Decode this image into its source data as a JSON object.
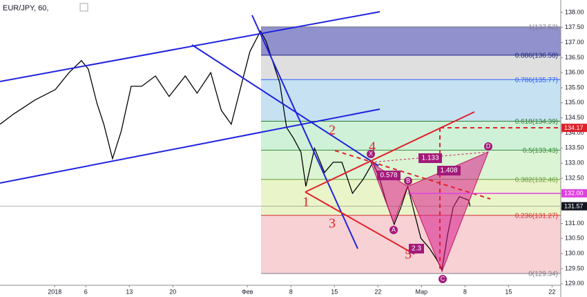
{
  "chart_data": {
    "type": "line",
    "title": "EUR/JPY, 60,",
    "color": "#000000",
    "x": [
      -8.8,
      -6.6,
      -3.2,
      0.1,
      2.3,
      4.3,
      5.4,
      6.8,
      7.9,
      9.3,
      10.7,
      12.3,
      14,
      16.2,
      18.4,
      21,
      22.9,
      25.1,
      26.8,
      28.4,
      30.1,
      31.4,
      33.1,
      34,
      35.1,
      36.2,
      37.3,
      38.4,
      39.6,
      40.4,
      41.8,
      43.4,
      44.8,
      46.2,
      47.9,
      49.6,
      51.2,
      52.3,
      53.4,
      54.6,
      55.7,
      56.8,
      57.9,
      58.9,
      60.3,
      61.4,
      62.3,
      63.2,
      64.1,
      65.1,
      66.6,
      66.8
    ],
    "values": [
      134.29,
      134.63,
      135.09,
      135.44,
      136.0,
      136.4,
      136.12,
      134.98,
      134.29,
      133.15,
      134.06,
      135.55,
      135.55,
      135.89,
      135.21,
      135.89,
      135.32,
      136.0,
      134.75,
      134.29,
      135.66,
      136.7,
      137.38,
      137.04,
      136.35,
      135.66,
      134.18,
      133.83,
      133.37,
      132.23,
      133.49,
      132.69,
      133.03,
      133.03,
      132.0,
      132.46,
      133.03,
      132.46,
      131.66,
      130.97,
      131.54,
      132.23,
      131.31,
      130.51,
      130.17,
      129.82,
      129.48,
      130.63,
      131.54,
      131.89,
      131.77,
      131.57
    ],
    "xlim": [
      -8.8,
      81.4
    ],
    "ylim": [
      128.95,
      138.41
    ],
    "xticks": [
      {
        "value": 0,
        "label": "2018"
      },
      {
        "value": 5,
        "label": "6"
      },
      {
        "value": 12,
        "label": "13"
      },
      {
        "value": 19,
        "label": "20"
      },
      {
        "value": 31,
        "label": "Фев"
      },
      {
        "value": 38,
        "label": "8"
      },
      {
        "value": 45,
        "label": "15"
      },
      {
        "value": 52,
        "label": "22"
      },
      {
        "value": 59,
        "label": "Мар"
      },
      {
        "value": 66,
        "label": "8"
      },
      {
        "value": 73,
        "label": "15"
      },
      {
        "value": 80,
        "label": "22"
      }
    ],
    "yticks": [
      {
        "value": 129,
        "label": "129.00"
      },
      {
        "value": 129.5,
        "label": "129.50"
      },
      {
        "value": 130,
        "label": "130.00"
      },
      {
        "value": 130.5,
        "label": "130.50"
      },
      {
        "value": 131,
        "label": "131.00"
      },
      {
        "value": 131.5,
        "label": "131.50"
      },
      {
        "value": 132,
        "label": "132.00"
      },
      {
        "value": 132.5,
        "label": "132.50"
      },
      {
        "value": 133,
        "label": "133.00"
      },
      {
        "value": 133.5,
        "label": "133.50"
      },
      {
        "value": 134,
        "label": "134.00"
      },
      {
        "value": 134.5,
        "label": "134.50"
      },
      {
        "value": 135,
        "label": "135.00"
      },
      {
        "value": 135.5,
        "label": "135.50"
      },
      {
        "value": 136,
        "label": "136.00"
      },
      {
        "value": 136.5,
        "label": "136.50"
      },
      {
        "value": 137,
        "label": "137.00"
      },
      {
        "value": 137.5,
        "label": "137.50"
      },
      {
        "value": 138,
        "label": "138.00"
      }
    ],
    "fib_levels": [
      {
        "value": 137.52,
        "label": "1(137.52)",
        "color": "#787b86",
        "fill": "#7e7ec4"
      },
      {
        "value": 136.58,
        "label": "0.886(136.58)",
        "color": "#1a237e",
        "fill": "#d9d9d9"
      },
      {
        "value": 135.77,
        "label": "0.786(135.77)",
        "color": "#2962ff",
        "fill": "#bcdcf0"
      },
      {
        "value": 134.39,
        "label": "0.618(134.39)",
        "color": "#2e7d32",
        "fill": "#c5efd0"
      },
      {
        "value": 133.43,
        "label": "0.5(133.43)",
        "color": "#388e3c",
        "fill": "#d3f2cc"
      },
      {
        "value": 132.46,
        "label": "0.382(132.46)",
        "color": "#689f38",
        "fill": "#e6f2c0"
      },
      {
        "value": 131.27,
        "label": "0.236(131.27)",
        "color": "#d32f2f",
        "fill": "#f6c9cc"
      },
      {
        "value": 129.34,
        "label": "0(129.34)",
        "color": "#787b86"
      }
    ],
    "price_labels": [
      {
        "value": 134.17,
        "label": "134.17",
        "color": "#e0202a"
      },
      {
        "value": 132.0,
        "label": "132.00",
        "color": "#e040e0"
      },
      {
        "value": 131.57,
        "label": "131.57",
        "color": "#131722"
      }
    ],
    "pattern_points": [
      "X",
      "A",
      "B",
      "C",
      "D"
    ],
    "ratios": [
      "0.578",
      "1.133",
      "1.408",
      "2.3"
    ],
    "wave_labels": [
      "1",
      "2",
      "3",
      "4",
      "5"
    ]
  }
}
